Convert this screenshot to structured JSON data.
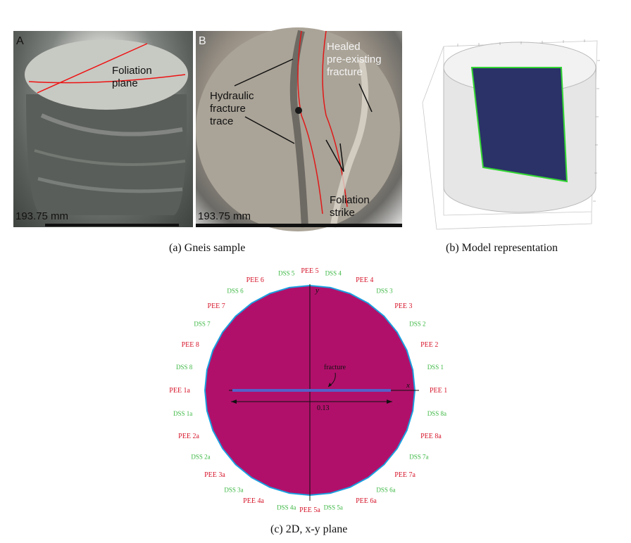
{
  "panel_a": {
    "letter": "A",
    "foliation_label": [
      "Foliation",
      "plane"
    ],
    "scale": "193.75 mm",
    "caption": "(a)  Gneis sample"
  },
  "panel_b": {
    "letter": "B",
    "hydraulic_label": [
      "Hydraulic",
      "fracture",
      "trace"
    ],
    "healed_label": [
      "Healed",
      "pre-existing",
      "fracture"
    ],
    "strike_label": [
      "Foliation",
      "strike"
    ],
    "scale": "193.75 mm"
  },
  "panel_model": {
    "caption": "(b)  Model representation"
  },
  "panel_c": {
    "caption": "(c)  2D, x-y plane",
    "x_axis": "x",
    "y_axis": "y",
    "fracture_label": "fracture",
    "dimension_label": "0.13",
    "sensors": [
      {
        "label": "PEE 1",
        "type": "PEE"
      },
      {
        "label": "DSS 1",
        "type": "DSS"
      },
      {
        "label": "PEE 2",
        "type": "PEE"
      },
      {
        "label": "DSS 2",
        "type": "DSS"
      },
      {
        "label": "PEE 3",
        "type": "PEE"
      },
      {
        "label": "DSS 3",
        "type": "DSS"
      },
      {
        "label": "PEE 4",
        "type": "PEE"
      },
      {
        "label": "DSS 4",
        "type": "DSS"
      },
      {
        "label": "PEE 5",
        "type": "PEE"
      },
      {
        "label": "DSS 5",
        "type": "DSS"
      },
      {
        "label": "PEE 6",
        "type": "PEE"
      },
      {
        "label": "DSS 6",
        "type": "DSS"
      },
      {
        "label": "PEE 7",
        "type": "PEE"
      },
      {
        "label": "DSS 7",
        "type": "DSS"
      },
      {
        "label": "PEE 8",
        "type": "PEE"
      },
      {
        "label": "DSS 8",
        "type": "DSS"
      },
      {
        "label": "PEE 1a",
        "type": "PEE"
      },
      {
        "label": "DSS 1a",
        "type": "DSS"
      },
      {
        "label": "PEE 2a",
        "type": "PEE"
      },
      {
        "label": "DSS 2a",
        "type": "DSS"
      },
      {
        "label": "PEE 3a",
        "type": "PEE"
      },
      {
        "label": "DSS 3a",
        "type": "DSS"
      },
      {
        "label": "PEE 4a",
        "type": "PEE"
      },
      {
        "label": "DSS 4a",
        "type": "DSS"
      },
      {
        "label": "PEE 5a",
        "type": "PEE"
      },
      {
        "label": "DSS 5a",
        "type": "DSS"
      },
      {
        "label": "PEE 6a",
        "type": "PEE"
      },
      {
        "label": "DSS 6a",
        "type": "DSS"
      },
      {
        "label": "PEE 7a",
        "type": "PEE"
      },
      {
        "label": "DSS 7a",
        "type": "DSS"
      },
      {
        "label": "PEE 8a",
        "type": "PEE"
      },
      {
        "label": "DSS 8a",
        "type": "DSS"
      }
    ]
  },
  "colors": {
    "disk": "#b0106a",
    "rim": "#1aa0e0",
    "fracture": "#5561c8",
    "model_plane": "#2a3268",
    "model_edge": "#33d633"
  }
}
